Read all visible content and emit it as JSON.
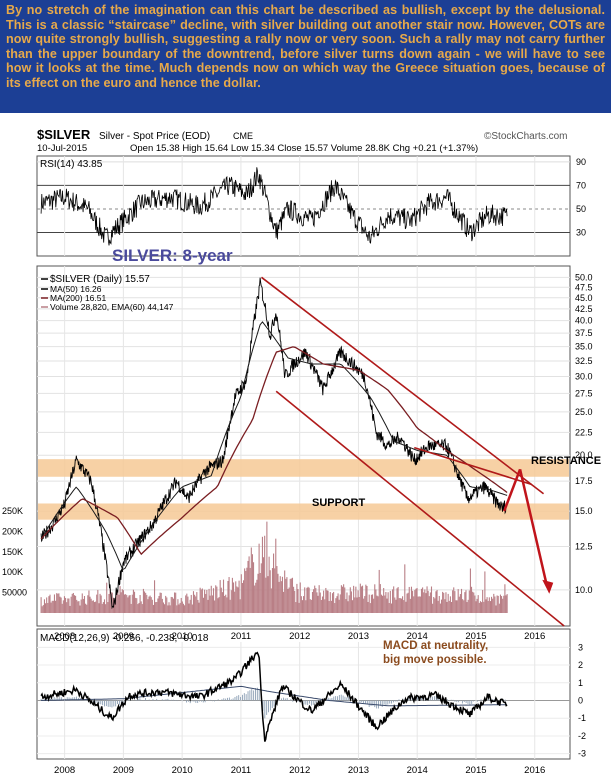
{
  "commentary": {
    "text": "By no stretch of the imagination can this chart be described as bullish, except by the delusional. This is a classic “staircase” decline, with silver building out another stair now. However, COTs are now quite strongly bullish, suggesting a rally now or very soon. Such a rally may not carry further than the upper boundary of the downtrend, before silver turns down again - we will have to see how it looks at the time. Much depends now on which way the Greece situation goes, because of its effect on the euro and hence the dollar."
  },
  "chart_header": {
    "symbol": "$SILVER",
    "name": "Silver - Spot Price (EOD)",
    "exchange": "CME",
    "copyright": "©StockCharts.com",
    "date": "10-Jul-2015",
    "open_label": "Open",
    "open": "15.38",
    "high_label": "High",
    "high": "15.64",
    "low_label": "Low",
    "low": "15.34",
    "close_label": "Close",
    "close": "15.57",
    "volume_label": "Volume",
    "volume": "28.8K",
    "chg_label": "Chg",
    "chg": "+0.21 (+1.37%)"
  },
  "colors": {
    "price": "#000000",
    "ma50": "#1a1a1a",
    "ma200": "#7a1e22",
    "volume": "#b97f86",
    "channel": "#b01a1a",
    "zone": "#f6c995",
    "arrow": "#c0141b",
    "label_blue": "#4a4a9c",
    "macd_annotation": "#8b4b1e",
    "hist": "#8da0b5"
  },
  "chart_data": [
    {
      "type": "line",
      "panel": "rsi",
      "legend": "RSI(14) 43.85",
      "ylim": [
        10,
        95
      ],
      "y_ticks": [
        90,
        70,
        50,
        30
      ],
      "x_ticks": [
        2008,
        2009,
        2010,
        2011,
        2012,
        2013,
        2014,
        2015,
        2016
      ],
      "series": [
        {
          "name": "RSI(14)",
          "x": [
            2007.6,
            2008.0,
            2008.4,
            2008.7,
            2008.9,
            2009.3,
            2009.8,
            2010.3,
            2010.8,
            2011.1,
            2011.3,
            2011.6,
            2011.8,
            2012.2,
            2012.6,
            2012.9,
            2013.2,
            2013.5,
            2013.9,
            2014.2,
            2014.5,
            2014.9,
            2015.2,
            2015.53
          ],
          "values": [
            55,
            60,
            50,
            25,
            35,
            55,
            60,
            52,
            70,
            62,
            80,
            30,
            50,
            40,
            70,
            45,
            25,
            45,
            40,
            55,
            60,
            30,
            45,
            43.85
          ]
        }
      ]
    },
    {
      "type": "line",
      "panel": "price",
      "y_scale": "log",
      "title": "SILVER: 8-year",
      "ylim": [
        8.3,
        53
      ],
      "y_ticks": [
        50.0,
        47.5,
        45.0,
        42.5,
        40.0,
        37.5,
        35.0,
        32.5,
        30.0,
        27.5,
        25.0,
        22.5,
        20.0,
        17.5,
        15.0,
        12.5,
        10.0
      ],
      "volume_ticks": [
        "250K",
        "200K",
        "150K",
        "100K",
        "50000"
      ],
      "x_ticks": [
        2008,
        2009,
        2010,
        2011,
        2012,
        2013,
        2014,
        2015,
        2016
      ],
      "legend": [
        {
          "label": "$SILVER (Daily) 15.57"
        },
        {
          "label": "MA(50) 16.26"
        },
        {
          "label": "MA(200) 16.51"
        },
        {
          "label": "Volume 28,820, EMA(60) 44,147"
        }
      ],
      "series": [
        {
          "name": "$SILVER",
          "x": [
            2007.6,
            2007.8,
            2008.0,
            2008.2,
            2008.45,
            2008.7,
            2008.82,
            2009.0,
            2009.3,
            2009.5,
            2009.9,
            2010.1,
            2010.4,
            2010.7,
            2010.9,
            2011.1,
            2011.33,
            2011.5,
            2011.6,
            2011.75,
            2011.9,
            2012.1,
            2012.4,
            2012.7,
            2012.9,
            2013.1,
            2013.3,
            2013.5,
            2013.7,
            2013.95,
            2014.2,
            2014.5,
            2014.7,
            2014.85,
            2015.0,
            2015.15,
            2015.3,
            2015.45,
            2015.53
          ],
          "values": [
            13.0,
            14.0,
            15.5,
            19.5,
            17.5,
            11.5,
            9.0,
            11.5,
            13.0,
            14.0,
            17.5,
            16.0,
            18.5,
            19.5,
            27.0,
            29.5,
            48.5,
            37.0,
            42.0,
            30.0,
            32.0,
            34.0,
            28.0,
            34.0,
            32.0,
            30.0,
            22.5,
            21.0,
            22.0,
            19.5,
            21.0,
            21.0,
            18.0,
            16.0,
            16.5,
            17.0,
            16.0,
            15.2,
            15.57
          ]
        },
        {
          "name": "MA(50)",
          "x": [
            2007.6,
            2008.2,
            2008.7,
            2009.0,
            2009.5,
            2010.0,
            2010.5,
            2011.0,
            2011.35,
            2011.8,
            2012.2,
            2012.7,
            2013.2,
            2013.6,
            2014.0,
            2014.5,
            2014.9,
            2015.2,
            2015.53
          ],
          "values": [
            13.0,
            17.0,
            13.5,
            11.0,
            14.0,
            17.0,
            18.0,
            27.0,
            40.0,
            33.0,
            32.0,
            32.0,
            27.0,
            21.5,
            20.5,
            20.0,
            17.0,
            16.8,
            16.26
          ]
        },
        {
          "name": "MA(200)",
          "x": [
            2007.6,
            2008.3,
            2008.9,
            2009.3,
            2010.0,
            2010.6,
            2011.2,
            2011.6,
            2011.9,
            2012.4,
            2013.0,
            2013.5,
            2014.0,
            2014.5,
            2015.0,
            2015.53
          ],
          "values": [
            13.0,
            16.0,
            14.5,
            12.0,
            14.5,
            17.0,
            24.0,
            34.0,
            35.0,
            32.0,
            31.0,
            28.0,
            23.0,
            20.5,
            18.5,
            16.51
          ]
        }
      ],
      "volume": {
        "x": [
          2008,
          2009,
          2010,
          2011,
          2011.3,
          2012,
          2013,
          2014,
          2015,
          2015.53
        ],
        "values": [
          30000,
          40000,
          30000,
          60000,
          130000,
          40000,
          45000,
          40000,
          40000,
          28820
        ],
        "ema_last": 44147
      }
    },
    {
      "type": "line",
      "panel": "macd",
      "legend": "MACD(12,26,9) -0.256, -0.238, -0.018",
      "ylim": [
        -3.3,
        3.3
      ],
      "y_ticks": [
        3,
        2,
        1,
        0,
        -1,
        -2,
        -3
      ],
      "x_ticks": [
        2008,
        2009,
        2010,
        2011,
        2012,
        2013,
        2014,
        2015,
        2016
      ],
      "series": [
        {
          "name": "MACD",
          "x": [
            2007.6,
            2008.2,
            2008.8,
            2009.1,
            2009.6,
            2010.3,
            2010.9,
            2011.3,
            2011.4,
            2011.7,
            2012.2,
            2012.7,
            2013.0,
            2013.3,
            2013.8,
            2014.3,
            2014.9,
            2015.2,
            2015.53
          ],
          "values": [
            0.2,
            0.6,
            -1.0,
            0.3,
            0.5,
            0.2,
            1.2,
            2.8,
            -2.2,
            0.8,
            -0.6,
            0.9,
            -0.3,
            -1.5,
            0.1,
            0.3,
            -0.8,
            0.2,
            -0.256
          ]
        },
        {
          "name": "Signal",
          "x": [
            2007.6,
            2009.0,
            2011.0,
            2011.5,
            2012.5,
            2013.5,
            2015.53
          ],
          "values": [
            0.0,
            0.1,
            0.8,
            0.5,
            0.0,
            -0.3,
            -0.238
          ]
        }
      ]
    }
  ],
  "annotations": {
    "resistance": "RESISTANCE",
    "support": "SUPPORT",
    "macd_note": "MACD at neutrality, big move possible."
  }
}
